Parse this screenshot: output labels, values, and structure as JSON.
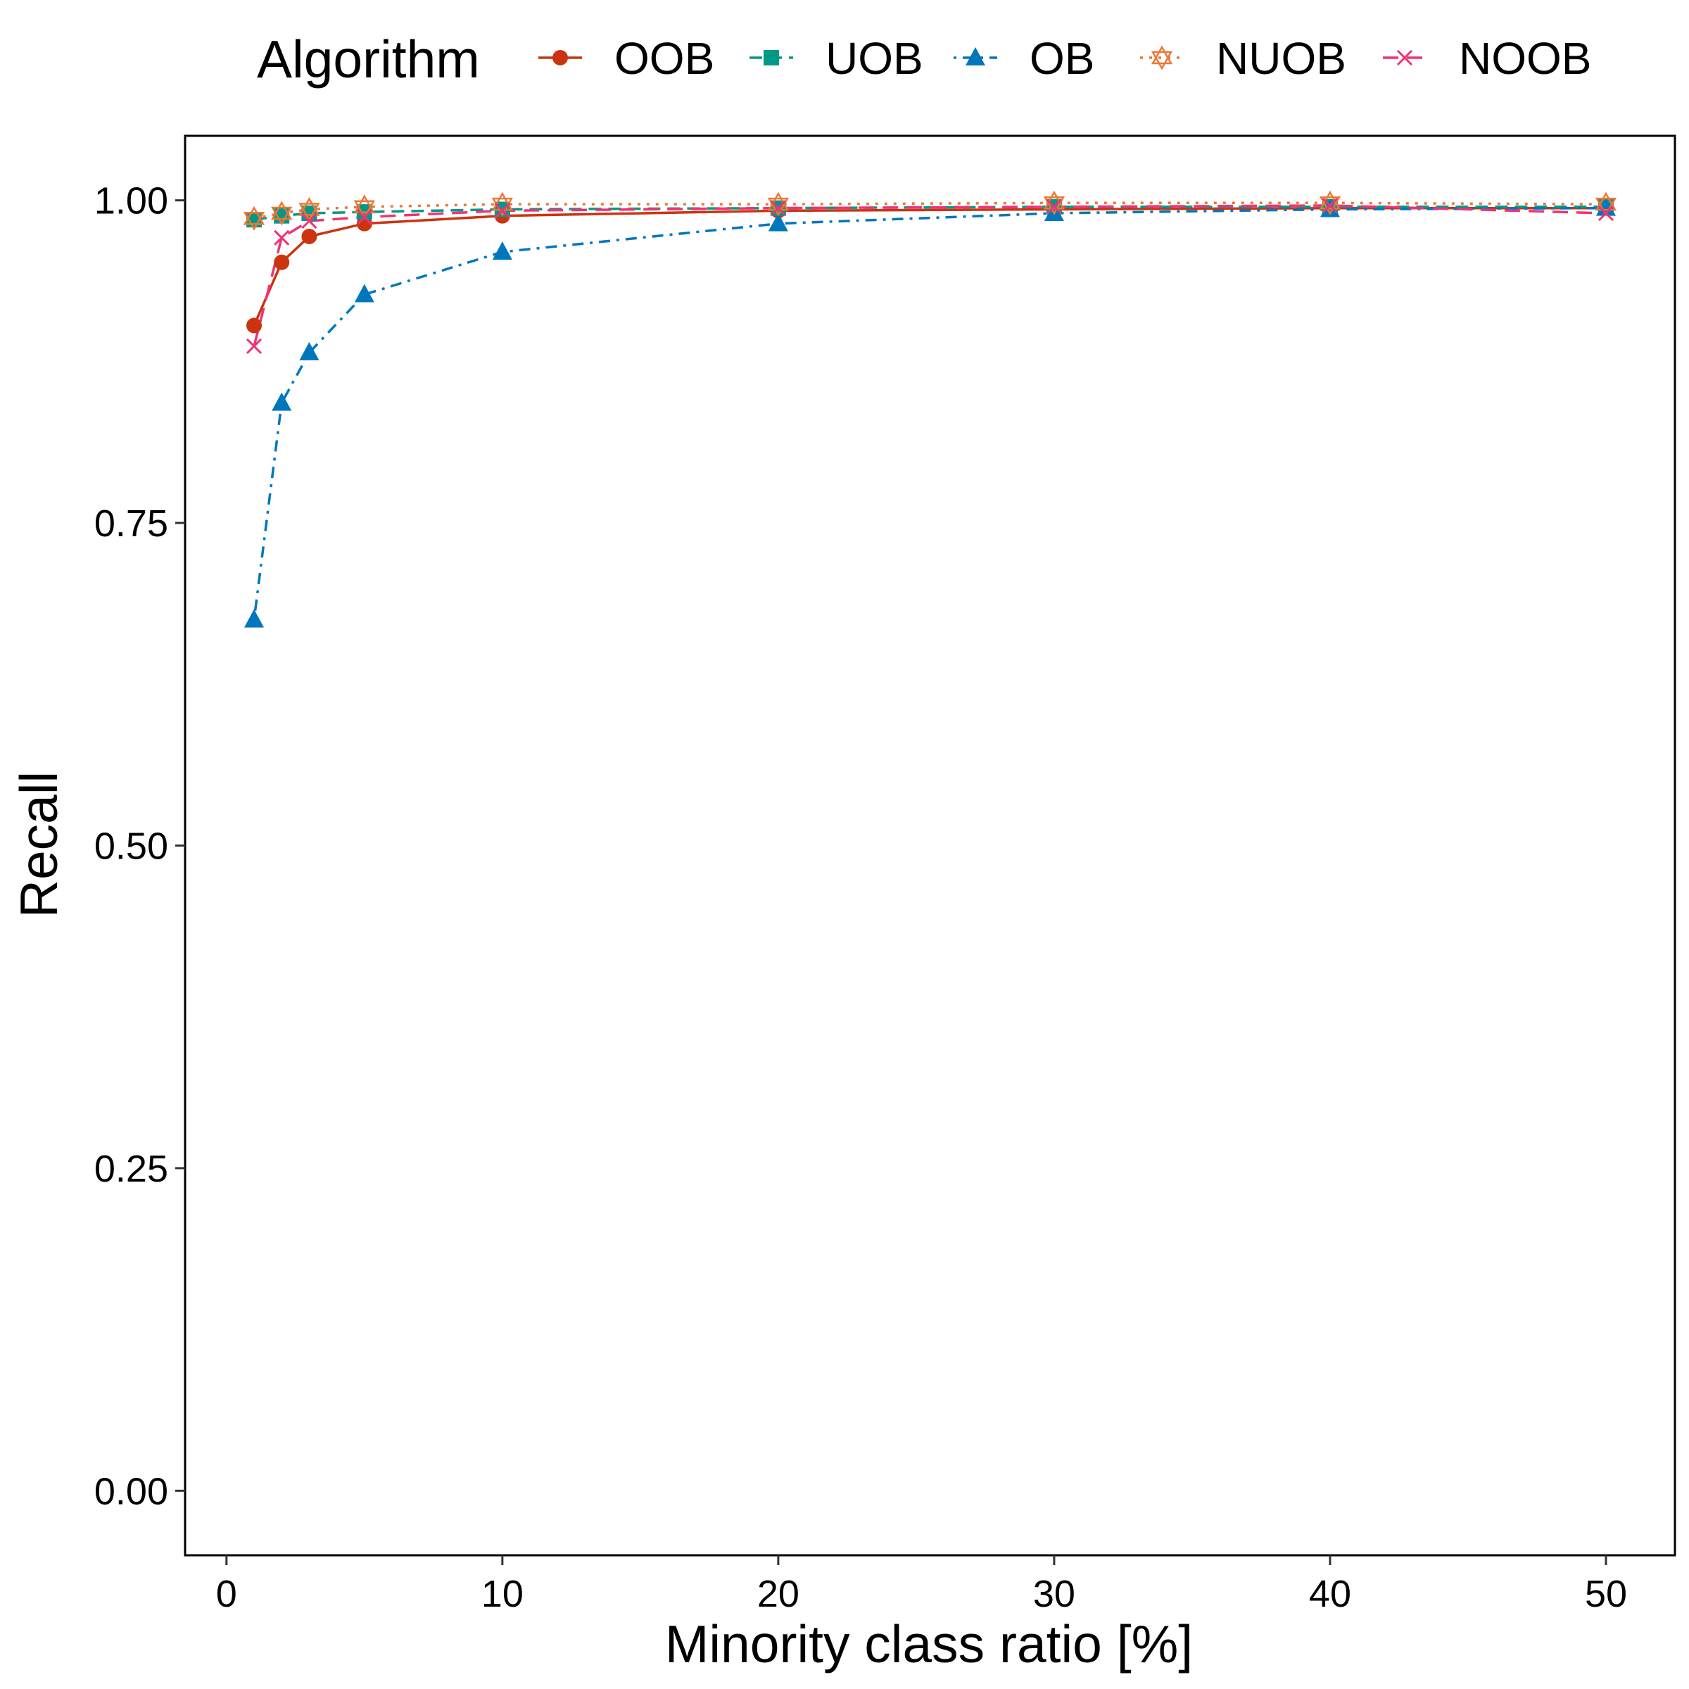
{
  "chart_data": {
    "type": "line",
    "xlabel": "Minority class ratio [%]",
    "ylabel": "Recall",
    "xlim": [
      -1.5,
      52.5
    ],
    "ylim": [
      -0.05,
      1.05
    ],
    "xticks": [
      0,
      10,
      20,
      30,
      40,
      50
    ],
    "xtick_labels": [
      "0",
      "10",
      "20",
      "30",
      "40",
      "50"
    ],
    "yticks": [
      0,
      0.25,
      0.5,
      0.75,
      1
    ],
    "ytick_labels": [
      "0.00",
      "0.25",
      "0.50",
      "0.75",
      "1.00"
    ],
    "grid": false,
    "legend": {
      "title": "Algorithm",
      "position": "top"
    },
    "x": [
      1,
      2,
      3,
      5,
      10,
      20,
      30,
      40,
      50
    ],
    "series": [
      {
        "name": "OOB",
        "color": "#cc3311",
        "marker": "circle",
        "dash": "solid",
        "values": [
          0.903,
          0.952,
          0.972,
          0.982,
          0.988,
          0.992,
          0.993,
          0.994,
          0.994
        ]
      },
      {
        "name": "UOB",
        "color": "#009988",
        "marker": "square",
        "dash": "dashed",
        "values": [
          0.985,
          0.988,
          0.99,
          0.991,
          0.993,
          0.994,
          0.995,
          0.995,
          0.995
        ]
      },
      {
        "name": "OB",
        "color": "#0077bb",
        "marker": "triangle",
        "dash": "dotdash",
        "values": [
          0.675,
          0.843,
          0.882,
          0.927,
          0.96,
          0.982,
          0.99,
          0.993,
          0.994
        ]
      },
      {
        "name": "NUOB",
        "color": "#ee7733",
        "marker": "star",
        "dash": "dotted",
        "values": [
          0.986,
          0.99,
          0.993,
          0.995,
          0.997,
          0.997,
          0.998,
          0.998,
          0.997
        ]
      },
      {
        "name": "NOOB",
        "color": "#ee3377",
        "marker": "cross",
        "dash": "longdash",
        "values": [
          0.887,
          0.971,
          0.984,
          0.987,
          0.992,
          0.994,
          0.995,
          0.996,
          0.99
        ]
      }
    ]
  }
}
